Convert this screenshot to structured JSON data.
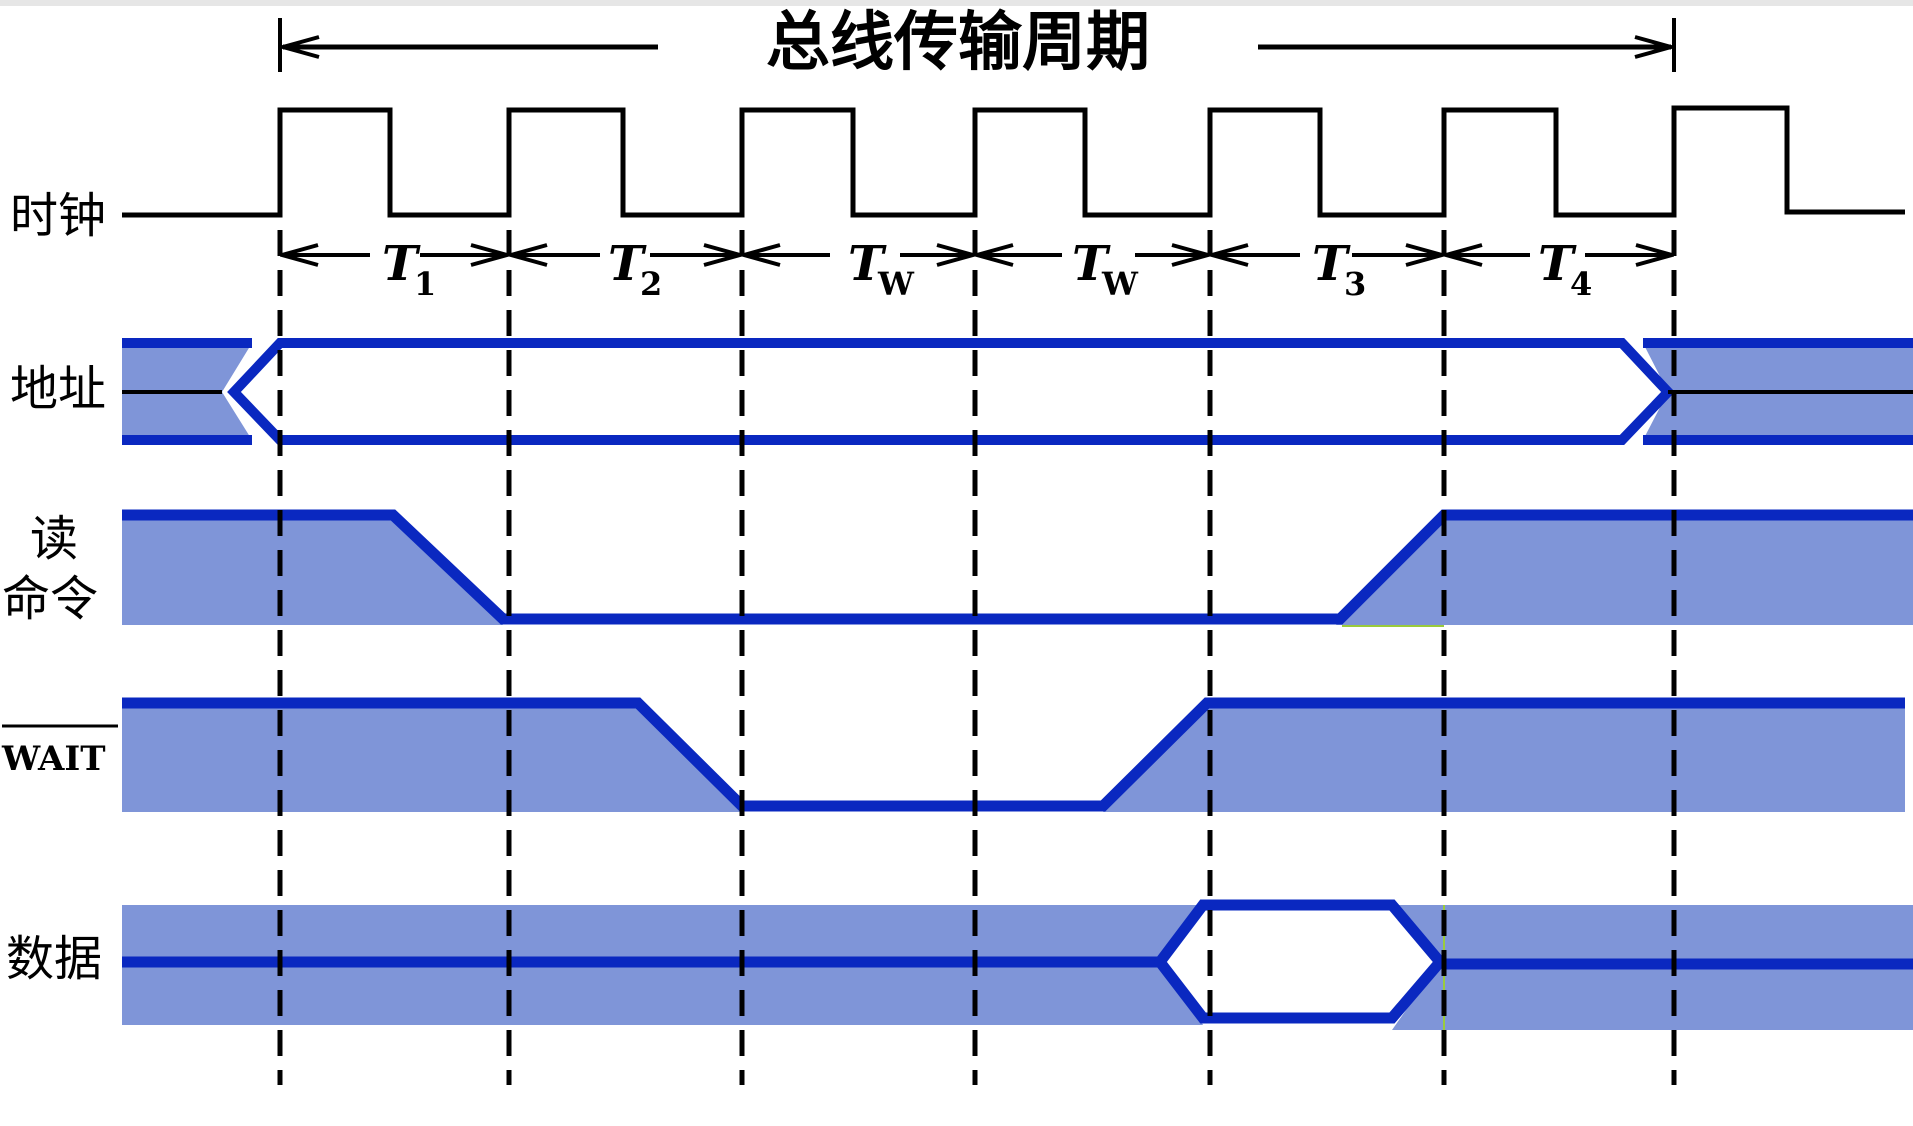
{
  "title": "总线传输周期",
  "signals": {
    "clock": "时钟",
    "address": "地址",
    "read_line1": "读",
    "read_line2": "命令",
    "wait": "WAIT",
    "data": "数据"
  },
  "periods": [
    {
      "main": "T",
      "sub": "1"
    },
    {
      "main": "T",
      "sub": "2"
    },
    {
      "main": "T",
      "sub": "W"
    },
    {
      "main": "T",
      "sub": "W"
    },
    {
      "main": "T",
      "sub": "3"
    },
    {
      "main": "T",
      "sub": "4"
    }
  ],
  "colors": {
    "line": "#0a28c0",
    "fill": "#7f95d8",
    "black": "#000000",
    "green_edge": "#9acb3c"
  }
}
